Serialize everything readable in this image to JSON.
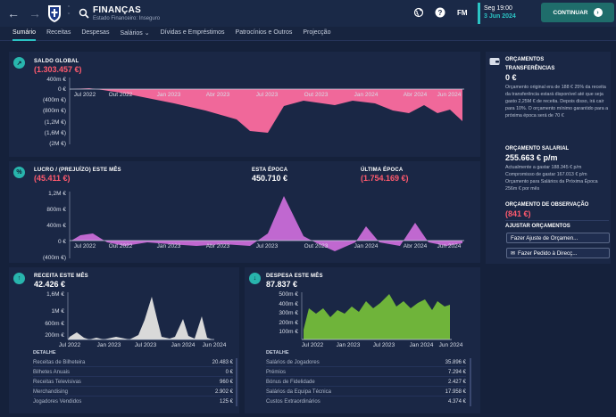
{
  "header": {
    "title": "FINANÇAS",
    "subtitle": "Estado Financeiro: Inseguro",
    "fm_label": "FM",
    "date_time": "Seg 19:00",
    "date": "3 Jun 2024",
    "continue_label": "CONTINUAR"
  },
  "tabs": [
    {
      "label": "Sumário",
      "active": true
    },
    {
      "label": "Receitas"
    },
    {
      "label": "Despesas"
    },
    {
      "label": "Salários ⌄"
    },
    {
      "label": "Dívidas e Empréstimos"
    },
    {
      "label": "Patrocínios e Outros"
    },
    {
      "label": "Projecção"
    }
  ],
  "saldo": {
    "label": "SALDO GLOBAL",
    "value": "(1.303.457 €)",
    "yticks": [
      "400m €",
      "0 €",
      "(400m €)",
      "(800m €)",
      "(1,2M €)",
      "(1,6M €)",
      "(2M €)"
    ],
    "xticks": [
      "Jul 2022",
      "Out 2022",
      "Jan 2023",
      "Abr 2023",
      "Jul 2023",
      "Out 2023",
      "Jan 2024",
      "Abr 2024",
      "Jun 2024"
    ],
    "color": "#f0689a"
  },
  "lucro": {
    "label": "LUCRO / (PREJUÍZO) ESTE MÊS",
    "value": "(45.411 €)",
    "this_season_label": "ESTA ÉPOCA",
    "this_season_value": "450.710 €",
    "last_season_label": "ÚLTIMA ÉPOCA",
    "last_season_value": "(1.754.169 €)",
    "yticks": [
      "1,2M €",
      "800m €",
      "400m €",
      "0 €",
      "(400m €)"
    ],
    "xticks": [
      "Jul 2022",
      "Out 2022",
      "Jan 2023",
      "Abr 2023",
      "Jul 2023",
      "Out 2023",
      "Jan 2024",
      "Abr 2024",
      "Jun 2024"
    ],
    "color": "#c068d0"
  },
  "receita": {
    "label": "RECEITA ESTE MÊS",
    "value": "42.426 €",
    "yticks": [
      "1,6M €",
      "1M €",
      "600m €",
      "200m €"
    ],
    "xticks": [
      "Jul 2022",
      "Jan 2023",
      "Jul 2023",
      "Jan 2024",
      "Jun 2024"
    ],
    "detail_label": "DETALHE",
    "rows": [
      {
        "name": "Receitas de Bilheteira",
        "value": "20.483 €"
      },
      {
        "name": "Bilhetes Anuais",
        "value": "0 €"
      },
      {
        "name": "Receitas Televisivas",
        "value": "960 €"
      },
      {
        "name": "Merchandising",
        "value": "2.902 €"
      },
      {
        "name": "Jogadores Vendidos",
        "value": "125 €"
      }
    ],
    "color": "#d9d9d9"
  },
  "despesa": {
    "label": "DESPESA ESTE MÊS",
    "value": "87.837 €",
    "yticks": [
      "500m €",
      "400m €",
      "300m €",
      "200m €",
      "100m €"
    ],
    "xticks": [
      "Jul 2022",
      "Jan 2023",
      "Jul 2023",
      "Jan 2024",
      "Jun 2024"
    ],
    "detail_label": "DETALHE",
    "rows": [
      {
        "name": "Salários de Jogadores",
        "value": "35.896 €"
      },
      {
        "name": "Prémios",
        "value": "7.294 €"
      },
      {
        "name": "Bónus de Fidelidade",
        "value": "2.427 €"
      },
      {
        "name": "Salários da Equipa Técnica",
        "value": "17.958 €"
      },
      {
        "name": "Custos Extraordinários",
        "value": "4.374 €"
      }
    ],
    "color": "#6fb43a"
  },
  "orcamentos": {
    "title": "ORÇAMENTOS",
    "transfer_label": "TRANSFERÊNCIAS",
    "transfer_value": "0 €",
    "transfer_text": "Orçamento original era de 188 € 25% da receita da transferência estará disponível até que seja gasto 2,25M € de receita. Depois disso, irá cair para 10%. O orçamento mínimo garantido para a próxima época será de 70 €",
    "salary_label": "ORÇAMENTO SALARIAL",
    "salary_value": "255.663 € p/m",
    "salary_text": "Actualmente a gastar 188.345 € p/m Compromisso de gastar 167.013 € p/m Orçamento para Salários da Próxima Época 256m € por mês",
    "scouting_label": "ORÇAMENTO DE OBSERVAÇÃO",
    "scouting_value": "(841 €)",
    "adjust_label": "AJUSTAR ORÇAMENTOS",
    "btn_adjust": "Fazer Ajuste de Orçamen...",
    "btn_request": "Fazer Pedido à Direcç..."
  }
}
